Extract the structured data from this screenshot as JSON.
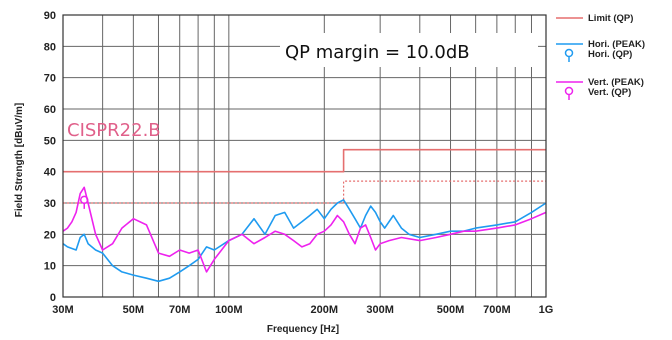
{
  "chart_data": {
    "type": "line",
    "xlabel": "Frequency [Hz]",
    "ylabel": "Field Strength [dBuV/m]",
    "x_scale": "log",
    "xlim": [
      30,
      1000
    ],
    "ylim": [
      0,
      90
    ],
    "x_ticks": [
      30,
      50,
      70,
      100,
      200,
      300,
      500,
      700,
      1000
    ],
    "x_tick_labels": [
      "30M",
      "50M",
      "70M",
      "100M",
      "200M",
      "300M",
      "500M",
      "700M",
      "1G"
    ],
    "y_ticks": [
      0,
      10,
      20,
      30,
      40,
      50,
      60,
      70,
      80,
      90
    ],
    "y_tick_labels": [
      "0",
      "10",
      "20",
      "30",
      "40",
      "50",
      "60",
      "70",
      "80",
      "90"
    ],
    "grid": true,
    "legend_position": "right",
    "colors": {
      "limit": "#e56f6f",
      "limit_margin": "#e56f6f",
      "hori": "#1f9bf0",
      "vert": "#ee22ee",
      "grid": "#666666"
    },
    "series": [
      {
        "name": "Limit (QP)",
        "style": "solid",
        "x": [
          30,
          230,
          230,
          1000
        ],
        "y": [
          40,
          40,
          47,
          47
        ]
      },
      {
        "style": "dashed",
        "x": [
          30,
          230,
          230,
          1000
        ],
        "y": [
          30,
          30,
          37,
          37
        ]
      },
      {
        "name": "Hori. (PEAK)",
        "style": "solid",
        "x": [
          30,
          31,
          33,
          34,
          35,
          36,
          38,
          40,
          43,
          46,
          50,
          55,
          60,
          65,
          70,
          75,
          80,
          85,
          90,
          100,
          110,
          120,
          130,
          140,
          150,
          160,
          170,
          180,
          190,
          200,
          210,
          220,
          230,
          240,
          250,
          260,
          270,
          280,
          290,
          300,
          310,
          330,
          350,
          370,
          400,
          450,
          500,
          550,
          600,
          700,
          800,
          900,
          1000
        ],
        "y": [
          17,
          16,
          15,
          19,
          20,
          17,
          15,
          14,
          10,
          8,
          7,
          6,
          5,
          6,
          8,
          10,
          12,
          16,
          15,
          18,
          20,
          25,
          20,
          26,
          27,
          22,
          24,
          26,
          28,
          25,
          28,
          30,
          31,
          28,
          25,
          22,
          26,
          29,
          27,
          24,
          22,
          26,
          22,
          20,
          19,
          20,
          21,
          21,
          22,
          23,
          24,
          27,
          30
        ]
      },
      {
        "name": "Hori. (QP)",
        "style": "marker",
        "x": [],
        "y": []
      },
      {
        "name": "Vert. (PEAK)",
        "style": "solid",
        "x": [
          30,
          31,
          32,
          33,
          34,
          35,
          36,
          38,
          40,
          43,
          46,
          50,
          55,
          60,
          65,
          70,
          75,
          80,
          85,
          90,
          100,
          110,
          120,
          130,
          140,
          150,
          160,
          170,
          180,
          190,
          200,
          210,
          220,
          230,
          240,
          250,
          260,
          270,
          280,
          290,
          300,
          320,
          350,
          400,
          450,
          500,
          550,
          600,
          700,
          800,
          900,
          1000
        ],
        "y": [
          21,
          22,
          24,
          27,
          33,
          35,
          30,
          20,
          15,
          17,
          22,
          25,
          23,
          14,
          13,
          15,
          14,
          15,
          8,
          12,
          18,
          20,
          17,
          19,
          21,
          20,
          18,
          16,
          17,
          20,
          21,
          23,
          26,
          24,
          20,
          17,
          22,
          23,
          19,
          15,
          17,
          18,
          19,
          18,
          19,
          20,
          21,
          21,
          22,
          23,
          25,
          27
        ]
      },
      {
        "name": "Vert. (QP)",
        "style": "marker",
        "x": [
          35
        ],
        "y": [
          31
        ]
      }
    ],
    "annotations": [
      {
        "text": "QP margin = 10.0dB"
      },
      {
        "text": "CISPR22.B"
      }
    ]
  }
}
